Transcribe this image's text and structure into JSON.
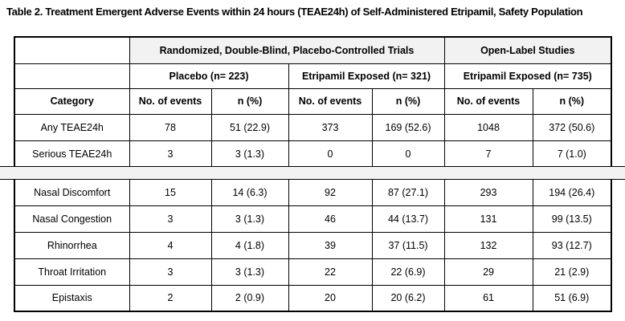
{
  "title": "Table 2. Treatment Emergent Adverse Events within 24 hours (TEAE24h) of Self-Administered Etripamil, Safety Population",
  "table": {
    "group_headers": [
      {
        "label": "Randomized, Double-Blind, Placebo-Controlled Trials"
      },
      {
        "label": "Open-Label Studies"
      }
    ],
    "subgroup_headers": [
      {
        "label": "Placebo (n= 223)"
      },
      {
        "label": "Etripamil Exposed (n= 321)"
      },
      {
        "label": "Etripamil Exposed (n= 735)"
      }
    ],
    "column_headers": [
      "Category",
      "No. of events",
      "n (%)",
      "No. of events",
      "n (%)",
      "No. of events",
      "n (%)"
    ],
    "rows_top": [
      {
        "category": "Any TEAE24h",
        "values": [
          "78",
          "51 (22.9)",
          "373",
          "169 (52.6)",
          "1048",
          "372 (50.6)"
        ]
      },
      {
        "category": "Serious TEAE24h",
        "values": [
          "3",
          "3 (1.3)",
          "0",
          "0",
          "7",
          "7 (1.0)"
        ]
      }
    ],
    "rows_bottom": [
      {
        "category": "Nasal Discomfort",
        "values": [
          "15",
          "14 (6.3)",
          "92",
          "87 (27.1)",
          "293",
          "194 (26.4)"
        ]
      },
      {
        "category": "Nasal Congestion",
        "values": [
          "3",
          "3 (1.3)",
          "46",
          "44 (13.7)",
          "131",
          "99 (13.5)"
        ]
      },
      {
        "category": "Rhinorrhea",
        "values": [
          "4",
          "4 (1.8)",
          "39",
          "37 (11.5)",
          "132",
          "93 (12.7)"
        ]
      },
      {
        "category": "Throat Irritation",
        "values": [
          "3",
          "3 (1.3)",
          "22",
          "22 (6.9)",
          "29",
          "21 (2.9)"
        ]
      },
      {
        "category": "Epistaxis",
        "values": [
          "2",
          "2 (0.9)",
          "20",
          "20 (6.2)",
          "61",
          "51 (6.9)"
        ]
      }
    ],
    "colors": {
      "header_shading": "#f2f2f2",
      "separator_shading": "#f2f2f2",
      "border": "#000000",
      "text": "#000000",
      "background": "#ffffff"
    }
  }
}
